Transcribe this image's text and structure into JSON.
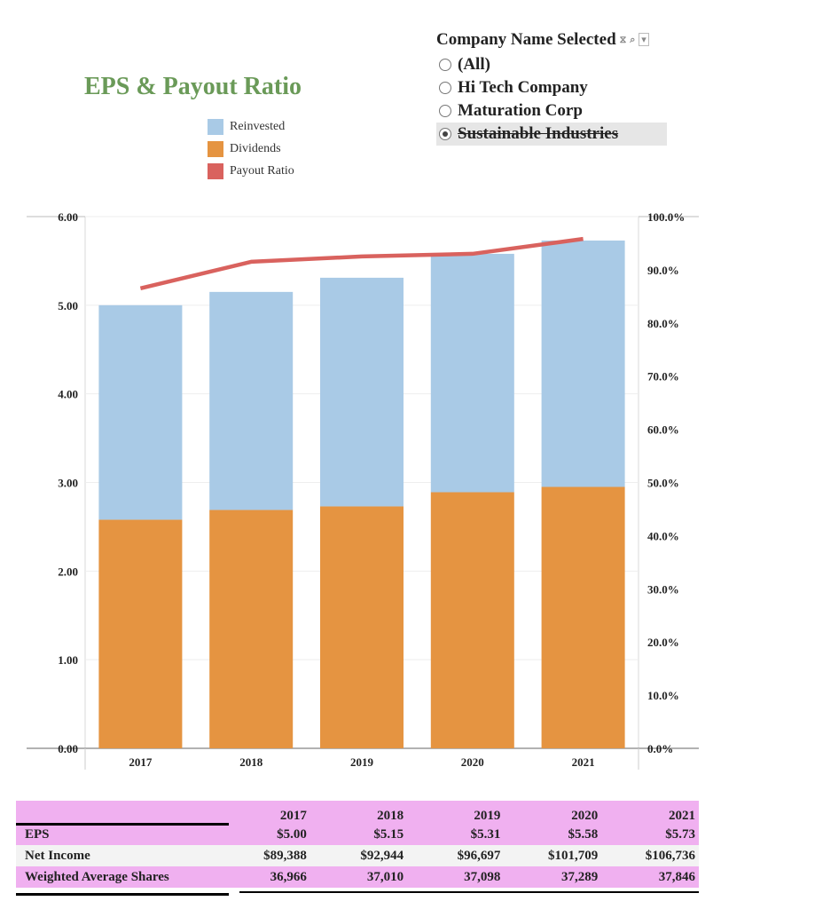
{
  "title": "EPS & Payout Ratio",
  "legend": [
    {
      "label": "Reinvested",
      "color": "#a9cae6"
    },
    {
      "label": "Dividends",
      "color": "#e59441"
    },
    {
      "label": "Payout Ratio",
      "color": "#d9625e"
    }
  ],
  "filter": {
    "title": "Company Name Selected",
    "options": [
      "(All)",
      "Hi Tech Company",
      "Maturation Corp",
      "Sustainable Industries"
    ],
    "selected": "Sustainable Industries"
  },
  "chart_data": {
    "type": "bar",
    "stacked": true,
    "categories": [
      "2017",
      "2018",
      "2019",
      "2020",
      "2021"
    ],
    "series": [
      {
        "name": "Dividends",
        "axis": "left",
        "color": "#e59441",
        "values": [
          2.58,
          2.69,
          2.73,
          2.89,
          2.95
        ]
      },
      {
        "name": "Reinvested",
        "axis": "left",
        "color": "#a9cae6",
        "values": [
          2.42,
          2.46,
          2.58,
          2.69,
          2.78
        ]
      },
      {
        "name": "Payout Ratio",
        "axis": "right",
        "type": "line",
        "color": "#d9625e",
        "values": [
          86.5,
          91.5,
          92.5,
          93.0,
          95.8
        ]
      }
    ],
    "ylim_left": [
      0,
      6
    ],
    "ylim_right": [
      0,
      100
    ],
    "yticks_left": [
      "0.00",
      "1.00",
      "2.00",
      "3.00",
      "4.00",
      "5.00",
      "6.00"
    ],
    "yticks_right": [
      "0.0%",
      "10.0%",
      "20.0%",
      "30.0%",
      "40.0%",
      "50.0%",
      "60.0%",
      "70.0%",
      "80.0%",
      "90.0%",
      "100.0%"
    ]
  },
  "table": {
    "years": [
      "2017",
      "2018",
      "2019",
      "2020",
      "2021"
    ],
    "rows": [
      {
        "label": "EPS",
        "values": [
          "$5.00",
          "$5.15",
          "$5.31",
          "$5.58",
          "$5.73"
        ]
      },
      {
        "label": "Net Income",
        "values": [
          "$89,388",
          "$92,944",
          "$96,697",
          "$101,709",
          "$106,736"
        ]
      },
      {
        "label": "Weighted Average Shares",
        "values": [
          "36,966",
          "37,010",
          "37,098",
          "37,289",
          "37,846"
        ]
      }
    ]
  }
}
